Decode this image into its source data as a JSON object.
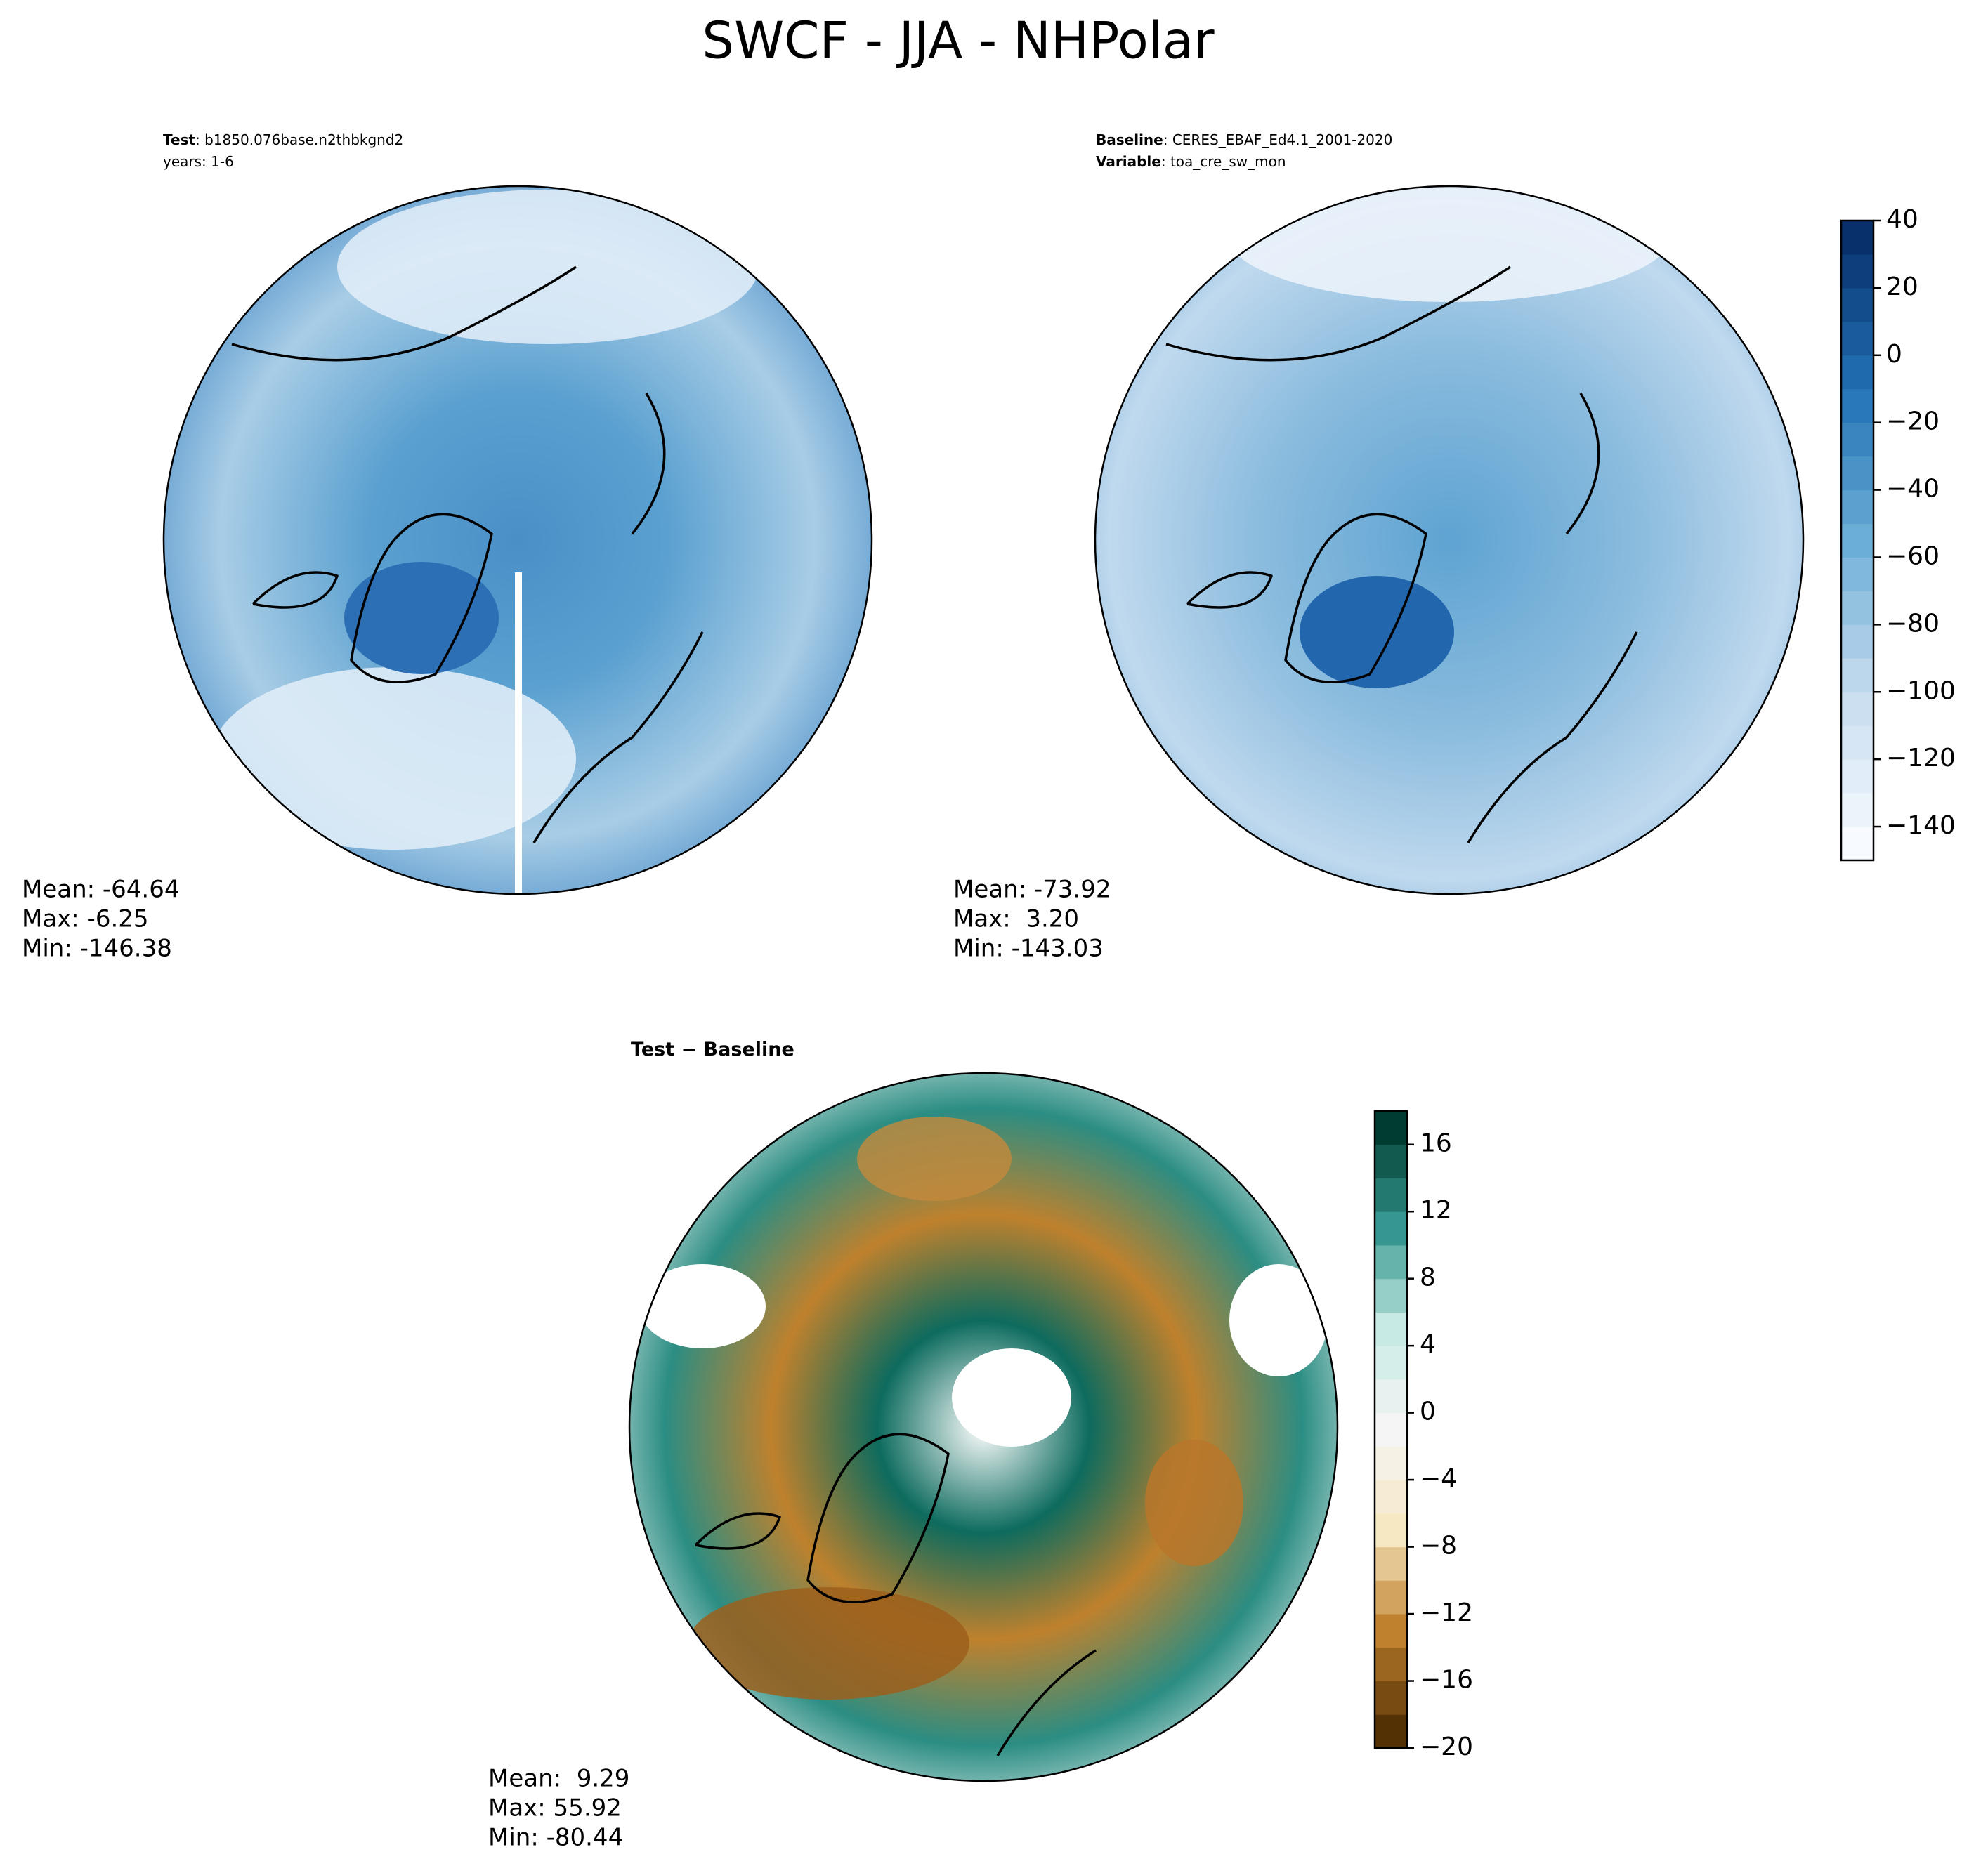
{
  "title": "SWCF - JJA - NHPolar",
  "panels": [
    {
      "header": [
        {
          "bold": "Test",
          "rest": ": b1850.076base.n2thbkgnd2"
        },
        {
          "bold": "",
          "rest": "years: 1-6"
        }
      ],
      "stats": [
        "Mean: -64.64",
        "Max: -6.25",
        "Min: -146.38"
      ]
    },
    {
      "header": [
        {
          "bold": "Baseline",
          "rest": ": CERES_EBAF_Ed4.1_2001-2020"
        },
        {
          "bold": "Variable",
          "rest": ": toa_cre_sw_mon"
        }
      ],
      "stats": [
        "Mean: -73.92",
        "Max:  3.20",
        "Min: -143.03"
      ]
    },
    {
      "header": [
        {
          "bold": "Test − Baseline",
          "rest": ""
        }
      ],
      "stats": [
        "Mean:  9.29",
        "Max: 55.92",
        "Min: -80.44"
      ]
    }
  ],
  "colorbars": [
    {
      "lim": [
        -150,
        40
      ],
      "bands": 19,
      "colors": [
        "#f7fbff",
        "#c6dbef",
        "#6baed6",
        "#2171b5",
        "#08306b"
      ],
      "ticks": [
        40,
        20,
        0,
        {
          "value": -20,
          "label": "−20"
        },
        {
          "value": -40,
          "label": "−40"
        },
        {
          "value": -60,
          "label": "−60"
        },
        {
          "value": -80,
          "label": "−80"
        },
        {
          "value": -100,
          "label": "−100"
        },
        {
          "value": -120,
          "label": "−120"
        },
        {
          "value": -140,
          "label": "−140"
        }
      ]
    },
    {
      "lim": [
        -20,
        18
      ],
      "bands": 19,
      "colors": [
        "#543005",
        "#bf812d",
        "#f6e8c3",
        "#f5f5f5",
        "#c7eae5",
        "#35978f",
        "#003c30"
      ],
      "ticks": [
        16,
        12,
        8,
        4,
        0,
        {
          "value": -4,
          "label": "−4"
        },
        {
          "value": -8,
          "label": "−8"
        },
        {
          "value": -12,
          "label": "−12"
        },
        {
          "value": -16,
          "label": "−16"
        },
        {
          "value": -20,
          "label": "−20"
        }
      ]
    }
  ]
}
